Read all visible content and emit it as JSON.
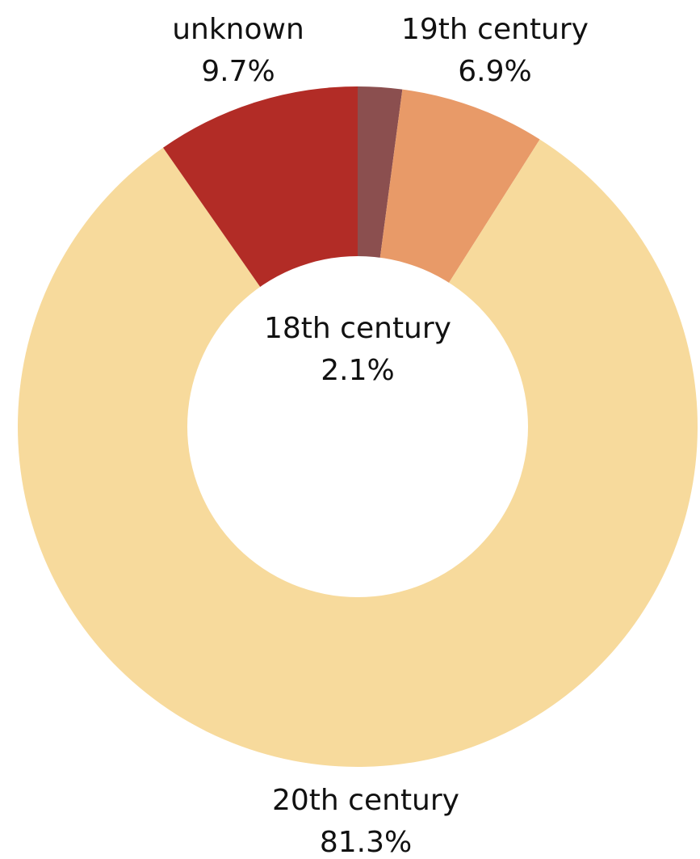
{
  "chart_data": {
    "type": "pie",
    "variant": "donut",
    "legend": "none",
    "slices": [
      {
        "label": "18th century",
        "value": 2.1,
        "value_label": "2.1%",
        "color": "#8b4f4f"
      },
      {
        "label": "19th century",
        "value": 6.9,
        "value_label": "6.9%",
        "color": "#e89a68"
      },
      {
        "label": "20th century",
        "value": 81.3,
        "value_label": "81.3%",
        "color": "#f7da9c"
      },
      {
        "label": "unknown",
        "value": 9.7,
        "value_label": "9.7%",
        "color": "#b22c26"
      }
    ]
  }
}
